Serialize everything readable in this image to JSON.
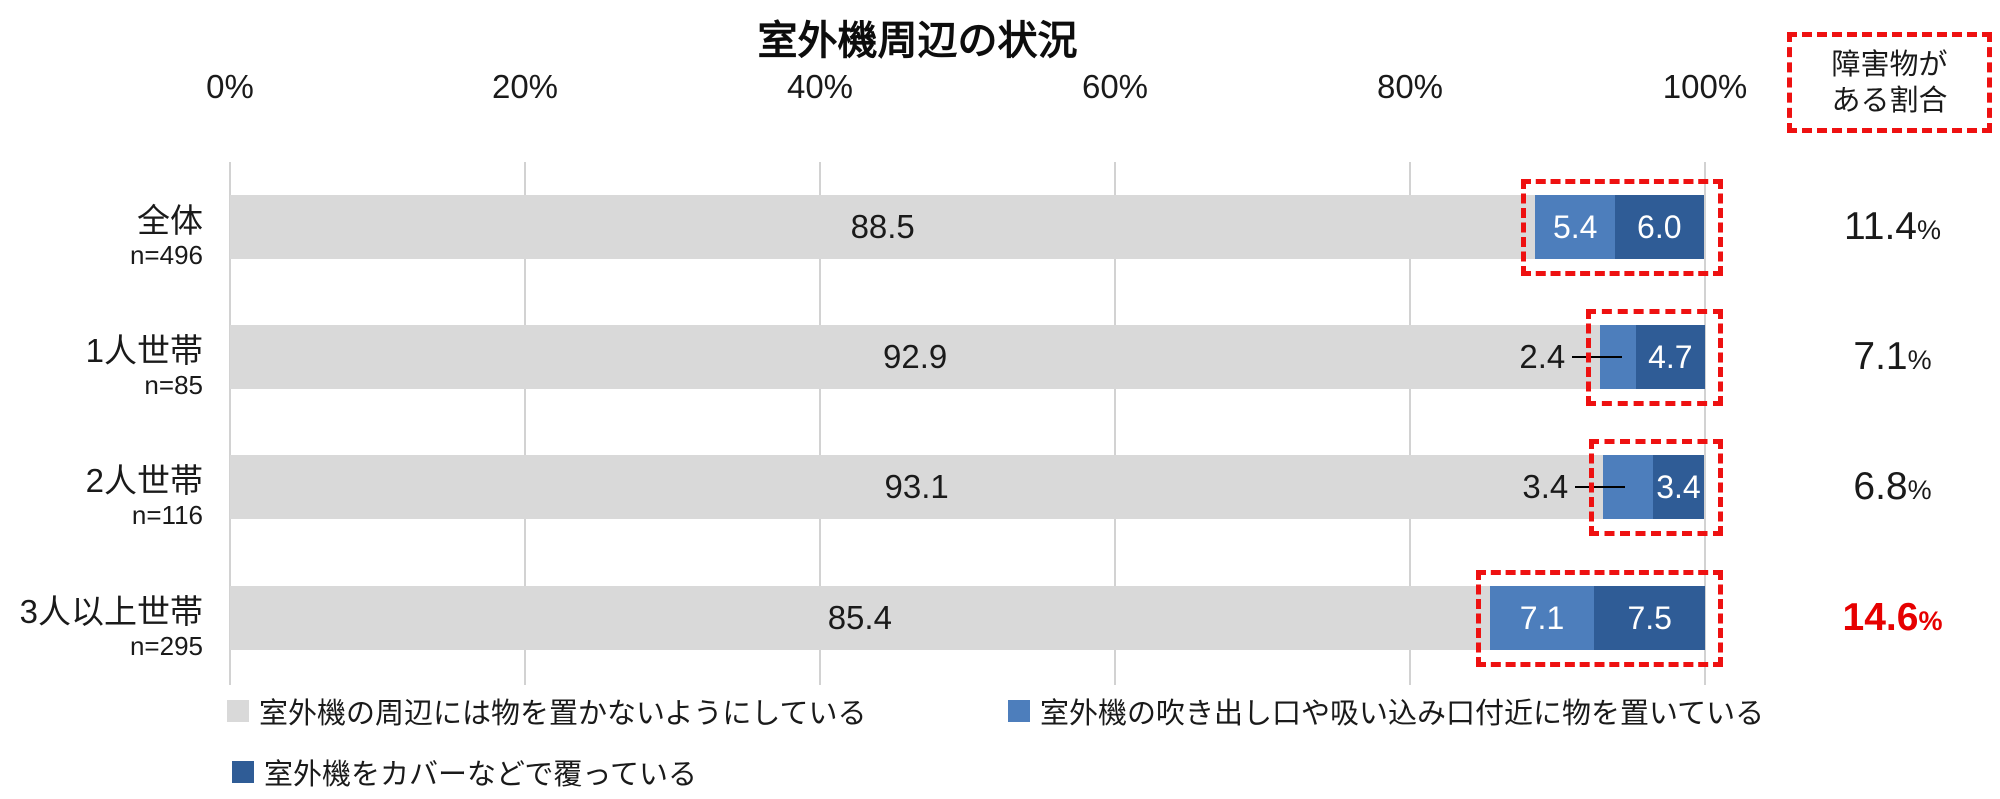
{
  "title": "室外機周辺の状況",
  "colors": {
    "bar_gray": "#d9d9d9",
    "bar_blue_mid": "#4d7ebc",
    "bar_blue_dark": "#2f5c96",
    "accent_red": "#ee1111",
    "rate_red": "#e60000",
    "gridline": "#d2d2d2"
  },
  "axis": {
    "ticks": [
      "0%",
      "20%",
      "40%",
      "60%",
      "80%",
      "100%"
    ]
  },
  "header_box": {
    "line1": "障害物が",
    "line2": "ある割合"
  },
  "legend": [
    {
      "label": "室外機の周辺には物を置かないようにしている",
      "color": "#d9d9d9"
    },
    {
      "label": "室外機の吹き出し口や吸い込み口付近に物を置いている",
      "color": "#4d7ebc"
    },
    {
      "label": "室外機をカバーなどで覆っている",
      "color": "#2f5c96"
    }
  ],
  "rows": [
    {
      "label": "全体",
      "n": "n=496",
      "values": [
        88.5,
        5.4,
        6.0
      ],
      "labels": [
        "88.5",
        "5.4",
        "6.0"
      ],
      "mid_outside": false,
      "rate": "11.4",
      "unit": "%",
      "highlight": false
    },
    {
      "label": "1人世帯",
      "n": "n=85",
      "values": [
        92.9,
        2.4,
        4.7
      ],
      "labels": [
        "92.9",
        "2.4",
        "4.7"
      ],
      "mid_outside": true,
      "rate": "7.1",
      "unit": "%",
      "highlight": false
    },
    {
      "label": "2人世帯",
      "n": "n=116",
      "values": [
        93.1,
        3.4,
        3.4
      ],
      "labels": [
        "93.1",
        "3.4",
        "3.4"
      ],
      "mid_outside": true,
      "rate": "6.8",
      "unit": "%",
      "highlight": false
    },
    {
      "label": "3人以上世帯",
      "n": "n=295",
      "values": [
        85.4,
        7.1,
        7.5
      ],
      "labels": [
        "85.4",
        "7.1",
        "7.5"
      ],
      "mid_outside": false,
      "rate": "14.6",
      "unit": "%",
      "highlight": true
    }
  ],
  "chart_data": {
    "type": "bar",
    "stacked": true,
    "orientation": "horizontal",
    "title": "室外機周辺の状況",
    "categories": [
      "全体",
      "1人世帯",
      "2人世帯",
      "3人以上世帯"
    ],
    "category_n": [
      "n=496",
      "n=85",
      "n=116",
      "n=295"
    ],
    "series": [
      {
        "name": "室外機の周辺には物を置かないようにしている",
        "values": [
          88.5,
          92.9,
          93.1,
          85.4
        ],
        "color": "#d9d9d9"
      },
      {
        "name": "室外機の吹き出し口や吸い込み口付近に物を置いている",
        "values": [
          5.4,
          2.4,
          3.4,
          7.1
        ],
        "color": "#4d7ebc"
      },
      {
        "name": "室外機をカバーなどで覆っている",
        "values": [
          6.0,
          4.7,
          3.4,
          7.5
        ],
        "color": "#2f5c96"
      }
    ],
    "x_ticks": [
      "0%",
      "20%",
      "40%",
      "60%",
      "80%",
      "100%"
    ],
    "xlim": [
      0,
      100
    ],
    "grid": true,
    "legend_position": "bottom",
    "annotations": {
      "right_column_header": "障害物がある割合",
      "right_column_values": [
        "11.4%",
        "7.1%",
        "6.8%",
        "14.6%"
      ],
      "highlighted_value": "14.6%",
      "dashed_boxes": "red dashed rectangles around the two blue segments of every bar and around the right column header"
    }
  }
}
